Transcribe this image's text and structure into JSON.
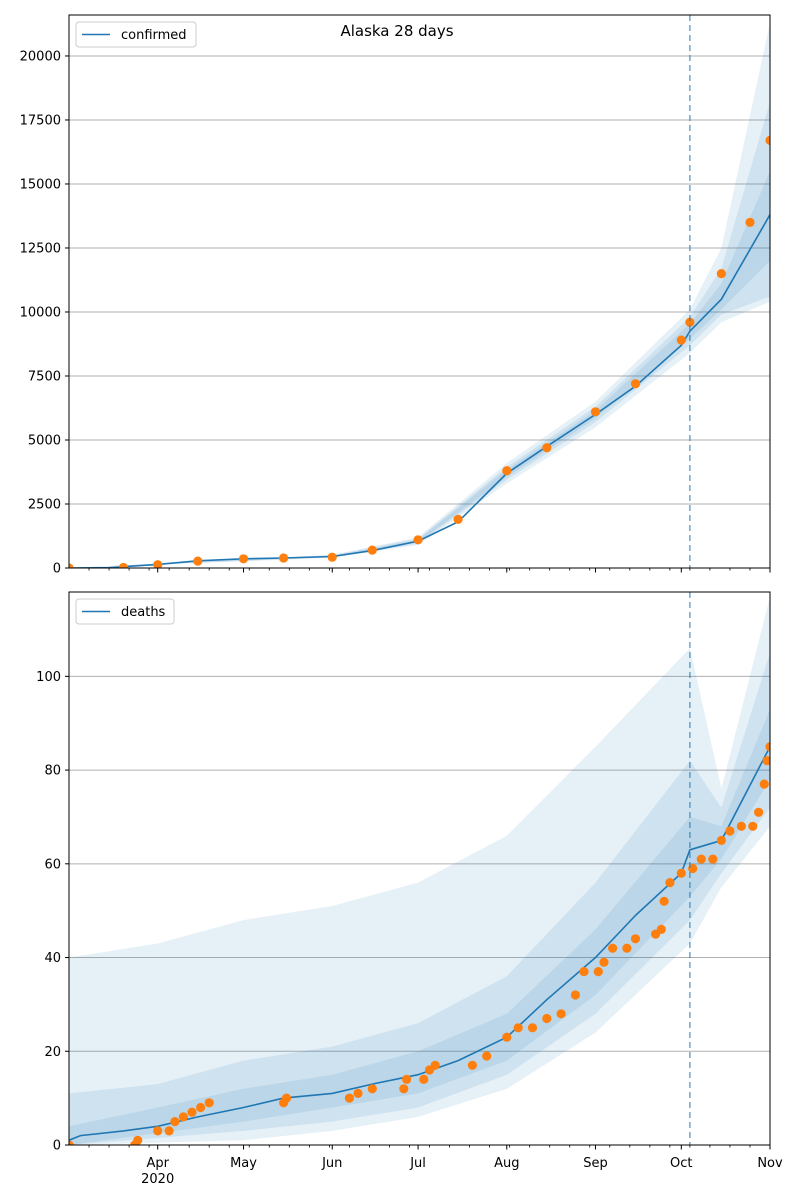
{
  "figure": {
    "title": "Alaska 28 days"
  },
  "colors": {
    "model": "#1f77b4",
    "observed": "#ff7f0e",
    "band": "#1f77b4",
    "grid": "#b0b0b0",
    "cutoff": "#1f77b4"
  },
  "x_axis": {
    "start": "2020-03-01",
    "end": "2020-11-01",
    "major_ticks": [
      {
        "date": "2020-04-01",
        "label": "Apr",
        "sublabel": "2020"
      },
      {
        "date": "2020-05-01",
        "label": "May"
      },
      {
        "date": "2020-06-01",
        "label": "Jun"
      },
      {
        "date": "2020-07-01",
        "label": "Jul"
      },
      {
        "date": "2020-08-01",
        "label": "Aug"
      },
      {
        "date": "2020-09-01",
        "label": "Sep"
      },
      {
        "date": "2020-10-01",
        "label": "Oct"
      },
      {
        "date": "2020-11-01",
        "label": "Nov"
      }
    ],
    "cutoff_date": "2020-10-04"
  },
  "chart_data": [
    {
      "type": "line",
      "name": "confirmed",
      "legend": "confirmed",
      "legend_position": "top-left",
      "grid": "horizontal",
      "ylim": [
        0,
        21600
      ],
      "y_ticks": [
        0,
        2500,
        5000,
        7500,
        10000,
        12500,
        15000,
        17500,
        20000
      ],
      "y_tick_labels": [
        "0",
        "2500",
        "5000",
        "7500",
        "10000",
        "12500",
        "15000",
        "17500",
        "20000"
      ],
      "model_points": [
        [
          "2020-03-01",
          0
        ],
        [
          "2020-03-15",
          10
        ],
        [
          "2020-04-01",
          140
        ],
        [
          "2020-04-15",
          280
        ],
        [
          "2020-05-01",
          360
        ],
        [
          "2020-05-15",
          390
        ],
        [
          "2020-06-01",
          450
        ],
        [
          "2020-06-15",
          680
        ],
        [
          "2020-07-01",
          1050
        ],
        [
          "2020-07-15",
          1800
        ],
        [
          "2020-08-01",
          3700
        ],
        [
          "2020-08-15",
          4750
        ],
        [
          "2020-09-01",
          6000
        ],
        [
          "2020-09-15",
          7100
        ],
        [
          "2020-10-01",
          8700
        ],
        [
          "2020-10-04",
          9250
        ],
        [
          "2020-10-15",
          10500
        ],
        [
          "2020-11-01",
          13800
        ]
      ],
      "bands": [
        {
          "lower": [
            [
              "2020-03-01",
              0
            ],
            [
              "2020-06-01",
              400
            ],
            [
              "2020-07-01",
              900
            ],
            [
              "2020-08-01",
              3300
            ],
            [
              "2020-09-01",
              5500
            ],
            [
              "2020-10-04",
              8400
            ],
            [
              "2020-10-15",
              9600
            ],
            [
              "2020-11-01",
              10400
            ]
          ],
          "upper": [
            [
              "2020-03-01",
              0
            ],
            [
              "2020-06-01",
              520
            ],
            [
              "2020-07-01",
              1200
            ],
            [
              "2020-08-01",
              4100
            ],
            [
              "2020-09-01",
              6500
            ],
            [
              "2020-10-04",
              10100
            ],
            [
              "2020-10-15",
              12500
            ],
            [
              "2020-11-01",
              21300
            ]
          ]
        },
        {
          "lower": [
            [
              "2020-03-01",
              0
            ],
            [
              "2020-06-01",
              420
            ],
            [
              "2020-07-01",
              950
            ],
            [
              "2020-08-01",
              3450
            ],
            [
              "2020-09-01",
              5700
            ],
            [
              "2020-10-04",
              8700
            ],
            [
              "2020-10-15",
              9900
            ],
            [
              "2020-11-01",
              10600
            ]
          ],
          "upper": [
            [
              "2020-03-01",
              0
            ],
            [
              "2020-06-01",
              500
            ],
            [
              "2020-07-01",
              1150
            ],
            [
              "2020-08-01",
              3950
            ],
            [
              "2020-09-01",
              6300
            ],
            [
              "2020-10-04",
              9800
            ],
            [
              "2020-10-15",
              11700
            ],
            [
              "2020-11-01",
              18200
            ]
          ]
        },
        {
          "lower": [
            [
              "2020-03-01",
              0
            ],
            [
              "2020-06-01",
              435
            ],
            [
              "2020-07-01",
              1000
            ],
            [
              "2020-08-01",
              3550
            ],
            [
              "2020-09-01",
              5850
            ],
            [
              "2020-10-04",
              8950
            ],
            [
              "2020-10-15",
              10100
            ],
            [
              "2020-11-01",
              12000
            ]
          ],
          "upper": [
            [
              "2020-03-01",
              0
            ],
            [
              "2020-06-01",
              470
            ],
            [
              "2020-07-01",
              1100
            ],
            [
              "2020-08-01",
              3850
            ],
            [
              "2020-09-01",
              6150
            ],
            [
              "2020-10-04",
              9550
            ],
            [
              "2020-10-15",
              11100
            ],
            [
              "2020-11-01",
              15500
            ]
          ]
        }
      ],
      "observed": [
        [
          "2020-03-01",
          0
        ],
        [
          "2020-03-20",
          20
        ],
        [
          "2020-04-01",
          130
        ],
        [
          "2020-04-15",
          270
        ],
        [
          "2020-05-01",
          360
        ],
        [
          "2020-05-15",
          390
        ],
        [
          "2020-06-01",
          420
        ],
        [
          "2020-06-15",
          700
        ],
        [
          "2020-07-01",
          1100
        ],
        [
          "2020-07-15",
          1900
        ],
        [
          "2020-08-01",
          3800
        ],
        [
          "2020-08-15",
          4700
        ],
        [
          "2020-09-01",
          6100
        ],
        [
          "2020-09-15",
          7200
        ],
        [
          "2020-10-01",
          8900
        ],
        [
          "2020-10-04",
          9600
        ],
        [
          "2020-10-15",
          11500
        ],
        [
          "2020-10-25",
          13500
        ],
        [
          "2020-11-01",
          16700
        ]
      ]
    },
    {
      "type": "line",
      "name": "deaths",
      "legend": "deaths",
      "legend_position": "top-left",
      "grid": "horizontal",
      "ylim": [
        0,
        118
      ],
      "y_ticks": [
        0,
        20,
        40,
        60,
        80,
        100
      ],
      "y_tick_labels": [
        "0",
        "20",
        "40",
        "60",
        "80",
        "100"
      ],
      "model_points": [
        [
          "2020-03-01",
          1
        ],
        [
          "2020-03-05",
          2
        ],
        [
          "2020-03-20",
          3
        ],
        [
          "2020-04-01",
          4
        ],
        [
          "2020-04-15",
          6
        ],
        [
          "2020-05-01",
          8
        ],
        [
          "2020-05-15",
          10
        ],
        [
          "2020-06-01",
          11
        ],
        [
          "2020-06-15",
          13
        ],
        [
          "2020-07-01",
          15
        ],
        [
          "2020-07-15",
          18
        ],
        [
          "2020-08-01",
          23
        ],
        [
          "2020-08-15",
          31
        ],
        [
          "2020-09-01",
          40
        ],
        [
          "2020-09-15",
          49
        ],
        [
          "2020-10-01",
          58
        ],
        [
          "2020-10-04",
          63
        ],
        [
          "2020-10-15",
          65
        ],
        [
          "2020-11-01",
          85
        ]
      ],
      "bands": [
        {
          "lower": [
            [
              "2020-03-01",
              0
            ],
            [
              "2020-05-01",
              1
            ],
            [
              "2020-06-01",
              3
            ],
            [
              "2020-07-01",
              6
            ],
            [
              "2020-08-01",
              12
            ],
            [
              "2020-09-01",
              24
            ],
            [
              "2020-10-04",
              43
            ],
            [
              "2020-10-15",
              55
            ],
            [
              "2020-11-01",
              68
            ]
          ],
          "upper": [
            [
              "2020-03-01",
              40
            ],
            [
              "2020-04-01",
              43
            ],
            [
              "2020-05-01",
              48
            ],
            [
              "2020-06-01",
              51
            ],
            [
              "2020-07-01",
              56
            ],
            [
              "2020-08-01",
              66
            ],
            [
              "2020-09-01",
              85
            ],
            [
              "2020-10-04",
              106
            ],
            [
              "2020-10-15",
              76
            ],
            [
              "2020-11-01",
              117
            ]
          ]
        },
        {
          "lower": [
            [
              "2020-03-01",
              0
            ],
            [
              "2020-05-01",
              3
            ],
            [
              "2020-06-01",
              5
            ],
            [
              "2020-07-01",
              8
            ],
            [
              "2020-08-01",
              15
            ],
            [
              "2020-09-01",
              28
            ],
            [
              "2020-10-04",
              48
            ],
            [
              "2020-10-15",
              58
            ],
            [
              "2020-11-01",
              72
            ]
          ],
          "upper": [
            [
              "2020-03-01",
              11
            ],
            [
              "2020-04-01",
              13
            ],
            [
              "2020-05-01",
              18
            ],
            [
              "2020-06-01",
              21
            ],
            [
              "2020-07-01",
              26
            ],
            [
              "2020-08-01",
              36
            ],
            [
              "2020-09-01",
              56
            ],
            [
              "2020-10-04",
              82
            ],
            [
              "2020-10-15",
              72
            ],
            [
              "2020-11-01",
              105
            ]
          ]
        },
        {
          "lower": [
            [
              "2020-03-01",
              0
            ],
            [
              "2020-05-01",
              5
            ],
            [
              "2020-06-01",
              8
            ],
            [
              "2020-07-01",
              11
            ],
            [
              "2020-08-01",
              18
            ],
            [
              "2020-09-01",
              32
            ],
            [
              "2020-10-04",
              53
            ],
            [
              "2020-10-15",
              61
            ],
            [
              "2020-11-01",
              78
            ]
          ],
          "upper": [
            [
              "2020-03-01",
              4
            ],
            [
              "2020-04-01",
              8
            ],
            [
              "2020-05-01",
              12
            ],
            [
              "2020-06-01",
              15
            ],
            [
              "2020-07-01",
              20
            ],
            [
              "2020-08-01",
              28
            ],
            [
              "2020-09-01",
              46
            ],
            [
              "2020-10-04",
              70
            ],
            [
              "2020-10-15",
              68
            ],
            [
              "2020-11-01",
              93
            ]
          ]
        }
      ],
      "observed": [
        [
          "2020-03-01",
          0
        ],
        [
          "2020-03-24",
          0
        ],
        [
          "2020-03-25",
          1
        ],
        [
          "2020-04-01",
          3
        ],
        [
          "2020-04-05",
          3
        ],
        [
          "2020-04-07",
          5
        ],
        [
          "2020-04-10",
          6
        ],
        [
          "2020-04-13",
          7
        ],
        [
          "2020-04-16",
          8
        ],
        [
          "2020-04-19",
          9
        ],
        [
          "2020-05-15",
          9
        ],
        [
          "2020-05-16",
          10
        ],
        [
          "2020-06-07",
          10
        ],
        [
          "2020-06-10",
          11
        ],
        [
          "2020-06-15",
          12
        ],
        [
          "2020-06-26",
          12
        ],
        [
          "2020-06-27",
          14
        ],
        [
          "2020-07-03",
          14
        ],
        [
          "2020-07-05",
          16
        ],
        [
          "2020-07-07",
          17
        ],
        [
          "2020-07-20",
          17
        ],
        [
          "2020-07-25",
          19
        ],
        [
          "2020-08-01",
          23
        ],
        [
          "2020-08-05",
          25
        ],
        [
          "2020-08-10",
          25
        ],
        [
          "2020-08-15",
          27
        ],
        [
          "2020-08-20",
          28
        ],
        [
          "2020-08-25",
          32
        ],
        [
          "2020-08-28",
          37
        ],
        [
          "2020-09-02",
          37
        ],
        [
          "2020-09-04",
          39
        ],
        [
          "2020-09-07",
          42
        ],
        [
          "2020-09-12",
          42
        ],
        [
          "2020-09-15",
          44
        ],
        [
          "2020-09-22",
          45
        ],
        [
          "2020-09-24",
          46
        ],
        [
          "2020-09-25",
          52
        ],
        [
          "2020-09-27",
          56
        ],
        [
          "2020-10-01",
          58
        ],
        [
          "2020-10-05",
          59
        ],
        [
          "2020-10-08",
          61
        ],
        [
          "2020-10-12",
          61
        ],
        [
          "2020-10-15",
          65
        ],
        [
          "2020-10-18",
          67
        ],
        [
          "2020-10-22",
          68
        ],
        [
          "2020-10-26",
          68
        ],
        [
          "2020-10-28",
          71
        ],
        [
          "2020-10-30",
          77
        ],
        [
          "2020-10-31",
          82
        ],
        [
          "2020-11-01",
          85
        ]
      ]
    }
  ]
}
